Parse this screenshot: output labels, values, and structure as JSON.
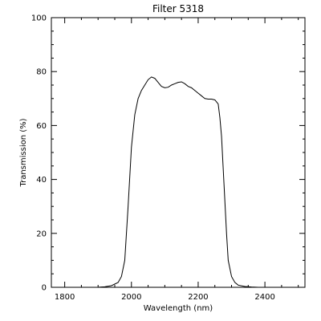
{
  "chart_data": {
    "type": "line",
    "title": "Filter 5318",
    "xlabel": "Wavelength (nm)",
    "ylabel": "Transmission (%)",
    "xlim": [
      1760,
      2520
    ],
    "ylim": [
      0,
      100
    ],
    "x_ticks": [
      1800,
      2000,
      2200,
      2400
    ],
    "x_tick_labels": [
      "1800",
      "2000",
      "2200",
      "2400"
    ],
    "y_ticks": [
      0,
      20,
      40,
      60,
      80,
      100
    ],
    "y_tick_labels": [
      "0",
      "20",
      "40",
      "60",
      "80",
      "100"
    ],
    "grid": false,
    "series": [
      {
        "x": [
          1880,
          1900,
          1920,
          1940,
          1960,
          1970,
          1980,
          1990,
          2000,
          2010,
          2020,
          2030,
          2040,
          2050,
          2060,
          2070,
          2080,
          2090,
          2100,
          2110,
          2120,
          2130,
          2140,
          2150,
          2160,
          2170,
          2180,
          2190,
          2200,
          2210,
          2220,
          2230,
          2240,
          2250,
          2260,
          2265,
          2270,
          2275,
          2280,
          2285,
          2290,
          2300,
          2310,
          2320,
          2340,
          2360,
          2380,
          2400
        ],
        "y": [
          0,
          0,
          0.2,
          0.6,
          1.8,
          4,
          10,
          30,
          52,
          64,
          70,
          73,
          75,
          77,
          78,
          77.5,
          76,
          74.5,
          74,
          74.2,
          75,
          75.5,
          76,
          76.2,
          75.5,
          74.5,
          74,
          73,
          72,
          71,
          70,
          69.8,
          69.8,
          69.5,
          68,
          63,
          56,
          44,
          32,
          20,
          10,
          4,
          1.8,
          0.8,
          0.3,
          0.1,
          0,
          0
        ]
      }
    ]
  }
}
